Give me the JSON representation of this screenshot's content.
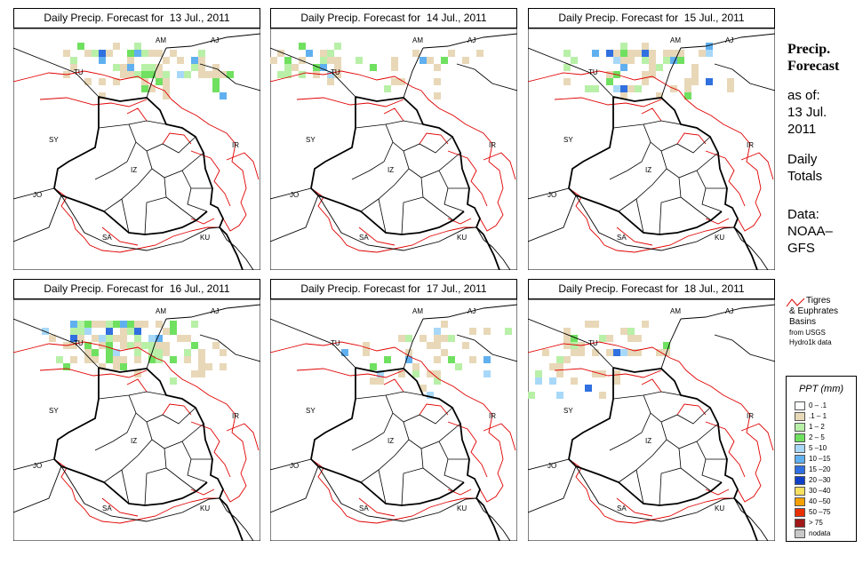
{
  "panels": [
    {
      "title": "Daily Precip. Forecast for  13 Jul., 2011"
    },
    {
      "title": "Daily Precip. Forecast for  14 Jul., 2011"
    },
    {
      "title": "Daily Precip. Forecast for  15 Jul., 2011"
    },
    {
      "title": "Daily Precip. Forecast for  16 Jul., 2011"
    },
    {
      "title": "Daily Precip. Forecast for  17 Jul., 2011"
    },
    {
      "title": "Daily Precip. Forecast for  18 Jul., 2011"
    }
  ],
  "map_labels": {
    "am": "AM",
    "aj": "AJ",
    "tu": "TU",
    "sy": "SY",
    "ir": "IR",
    "jo": "JO",
    "sa": "SA",
    "ku": "KU",
    "iz": "IZ"
  },
  "sidebar": {
    "title_line1": "Precip.",
    "title_line2": "Forecast",
    "asof": "as of:",
    "date_line1": "13 Jul.",
    "date_line2": "2011",
    "daily_line1": "Daily",
    "daily_line2": "Totals",
    "data_line1": "Data:",
    "data_line2": "NOAA–",
    "data_line3": "GFS"
  },
  "basin_legend": {
    "line1": "Tigres",
    "line2": "& Euphrates",
    "line3": "Basins",
    "line4": "from USGS",
    "line5": "Hydro1k data"
  },
  "ppt_legend": {
    "title": "PPT (mm)",
    "items": [
      {
        "label": "0 – .1",
        "color": "#ffffff"
      },
      {
        "label": ".1 – 1",
        "color": "#e8d8b8"
      },
      {
        "label": "1 – 2",
        "color": "#b8f0a8"
      },
      {
        "label": "2 – 5",
        "color": "#70e060"
      },
      {
        "label": "5 –10",
        "color": "#a8d8f8"
      },
      {
        "label": "10 –15",
        "color": "#60b0f0"
      },
      {
        "label": "15 –20",
        "color": "#3070e0"
      },
      {
        "label": "20 –30",
        "color": "#1040c8"
      },
      {
        "label": "30 –40",
        "color": "#f8e060"
      },
      {
        "label": "40 –50",
        "color": "#f8a000"
      },
      {
        "label": "50 –75",
        "color": "#e83000"
      },
      {
        "label": "> 75",
        "color": "#a01818"
      },
      {
        "label": "nodata",
        "color": "#c8c8c8"
      }
    ]
  }
}
